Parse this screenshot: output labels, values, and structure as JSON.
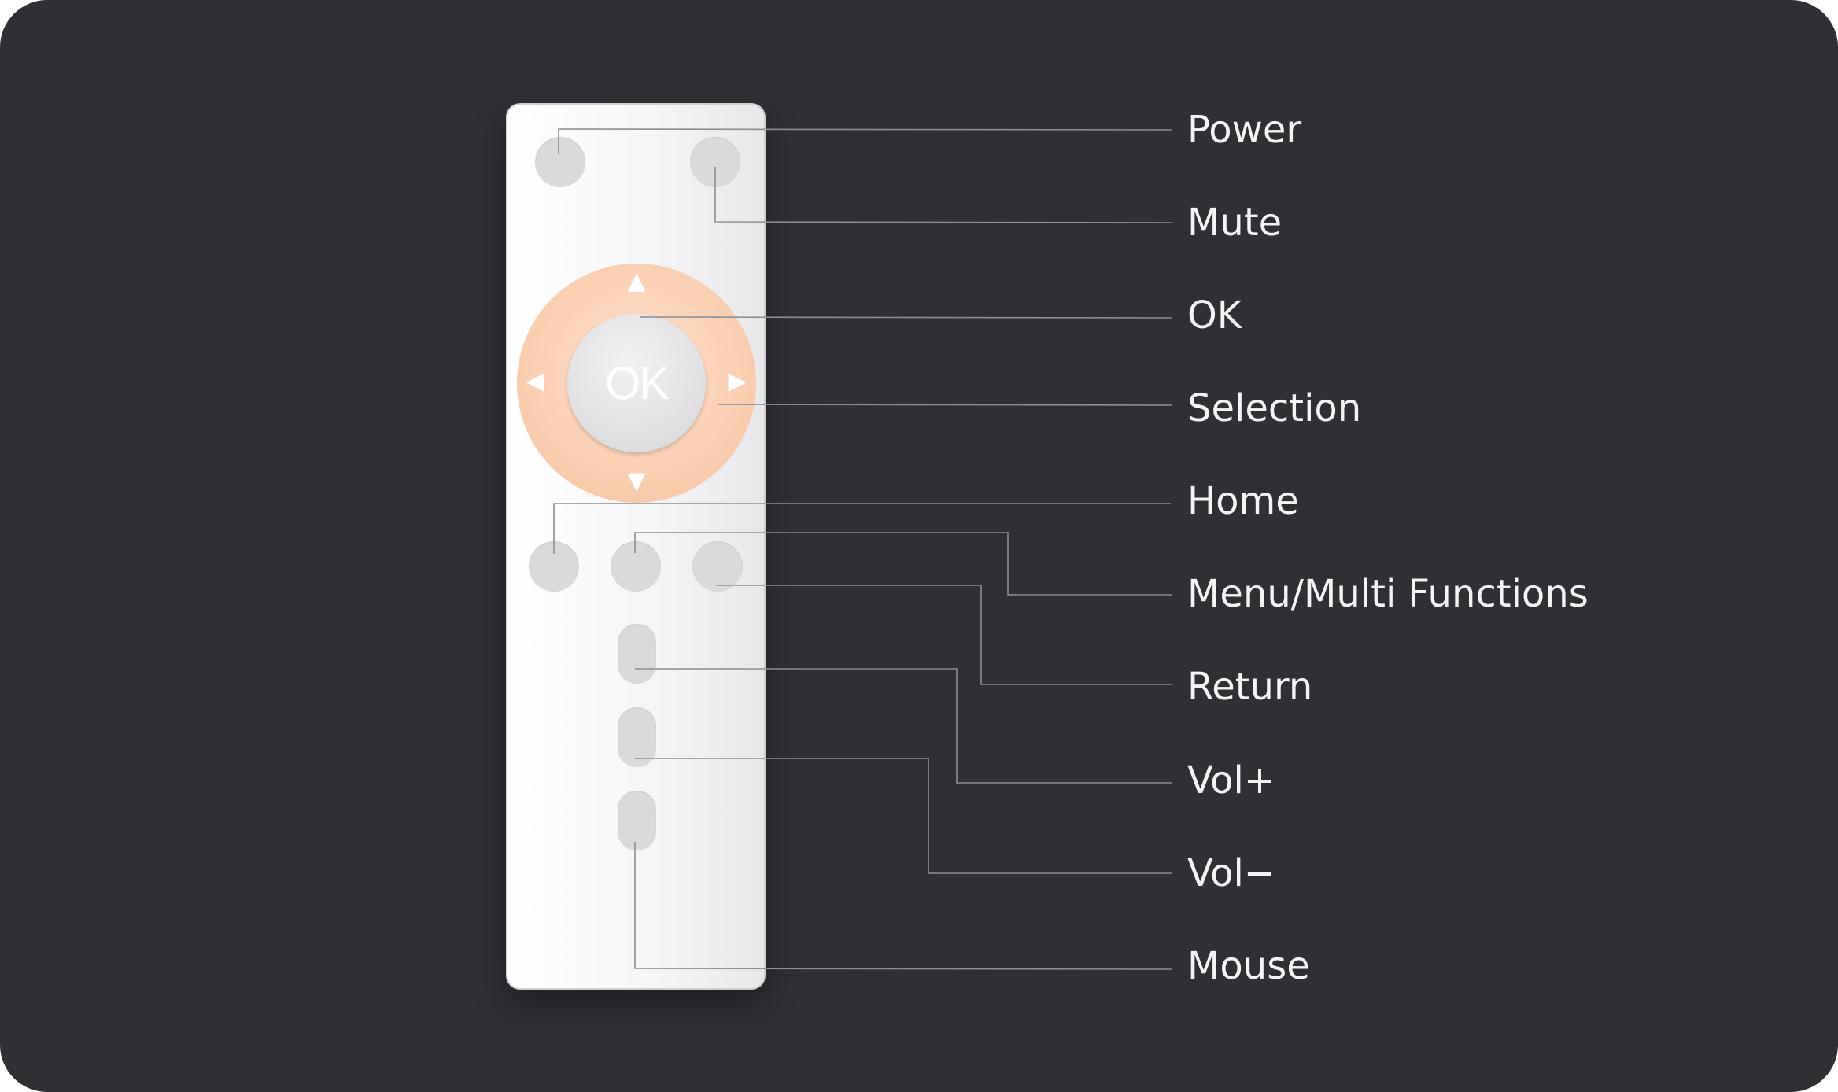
{
  "remote": {
    "ok_label": "OK",
    "dpad_arrows": {
      "up": "▲",
      "down": "▼",
      "left": "◀",
      "right": "▶"
    }
  },
  "labels": {
    "power": "Power",
    "mute": "Mute",
    "ok": "OK",
    "selection": "Selection",
    "home": "Home",
    "menu": "Menu/Multi Functions",
    "return": "Return",
    "vol_plus": "Vol+",
    "vol_minus": "Vol−",
    "mouse": "Mouse"
  },
  "colors": {
    "background": "#302f34",
    "dpad_ring": "#fbd0b3",
    "button": "#dadadd",
    "leader_line": "#8d8d92",
    "label_text": "#f4f4f6"
  }
}
